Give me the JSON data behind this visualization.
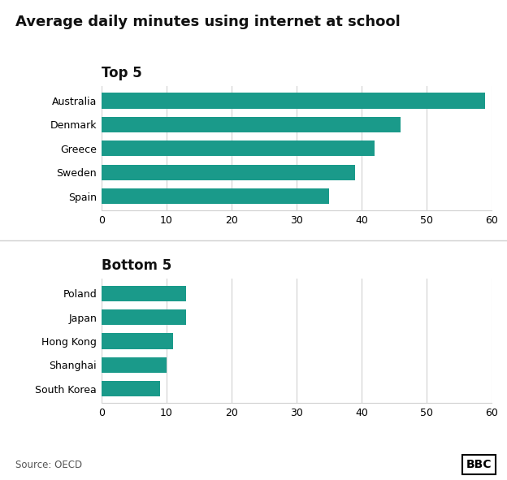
{
  "title": "Average daily minutes using internet at school",
  "top5_label": "Top 5",
  "bottom5_label": "Bottom 5",
  "top5_countries": [
    "Australia",
    "Denmark",
    "Greece",
    "Sweden",
    "Spain"
  ],
  "top5_values": [
    59,
    46,
    42,
    39,
    35
  ],
  "bottom5_countries": [
    "Poland",
    "Japan",
    "Hong Kong",
    "Shanghai",
    "South Korea"
  ],
  "bottom5_values": [
    13,
    13,
    11,
    10,
    9
  ],
  "bar_color": "#1a9a8a",
  "xlim": [
    0,
    60
  ],
  "xticks": [
    0,
    10,
    20,
    30,
    40,
    50,
    60
  ],
  "source_text": "Source: OECD",
  "bbc_text": "BBC",
  "background_color": "#ffffff",
  "title_fontsize": 13,
  "section_label_fontsize": 12,
  "tick_fontsize": 9,
  "source_fontsize": 8.5,
  "bar_height": 0.65,
  "grid_color": "#d0d0d0",
  "spine_color": "#333333"
}
